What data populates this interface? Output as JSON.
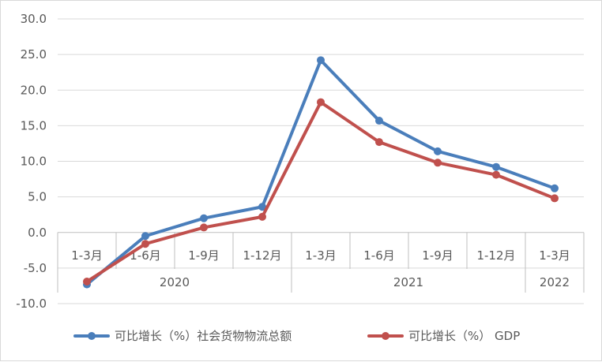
{
  "chart_data": {
    "type": "line",
    "title": "",
    "xlabel": "",
    "ylabel": "",
    "ylim": [
      -10,
      30
    ],
    "y_ticks": [
      "30.0",
      "25.0",
      "20.0",
      "15.0",
      "10.0",
      "5.0",
      "0.0",
      "-5.0",
      "-10.0"
    ],
    "grid": true,
    "legend_position": "bottom",
    "categories": [
      "1-3月",
      "1-6月",
      "1-9月",
      "1-12月",
      "1-3月",
      "1-6月",
      "1-9月",
      "1-12月",
      "1-3月"
    ],
    "year_groups": [
      {
        "label": "2020",
        "count": 4
      },
      {
        "label": "2021",
        "count": 4
      },
      {
        "label": "2022",
        "count": 1
      }
    ],
    "series": [
      {
        "name": "可比增长（%）社会货物物流总额",
        "color": "#4a7ebb",
        "values": [
          -7.3,
          -0.5,
          2.0,
          3.6,
          24.2,
          15.7,
          11.4,
          9.2,
          6.2
        ]
      },
      {
        "name": "可比增长（%） GDP",
        "color": "#c0504d",
        "values": [
          -6.9,
          -1.6,
          0.7,
          2.2,
          18.3,
          12.7,
          9.8,
          8.1,
          4.8
        ]
      }
    ]
  }
}
